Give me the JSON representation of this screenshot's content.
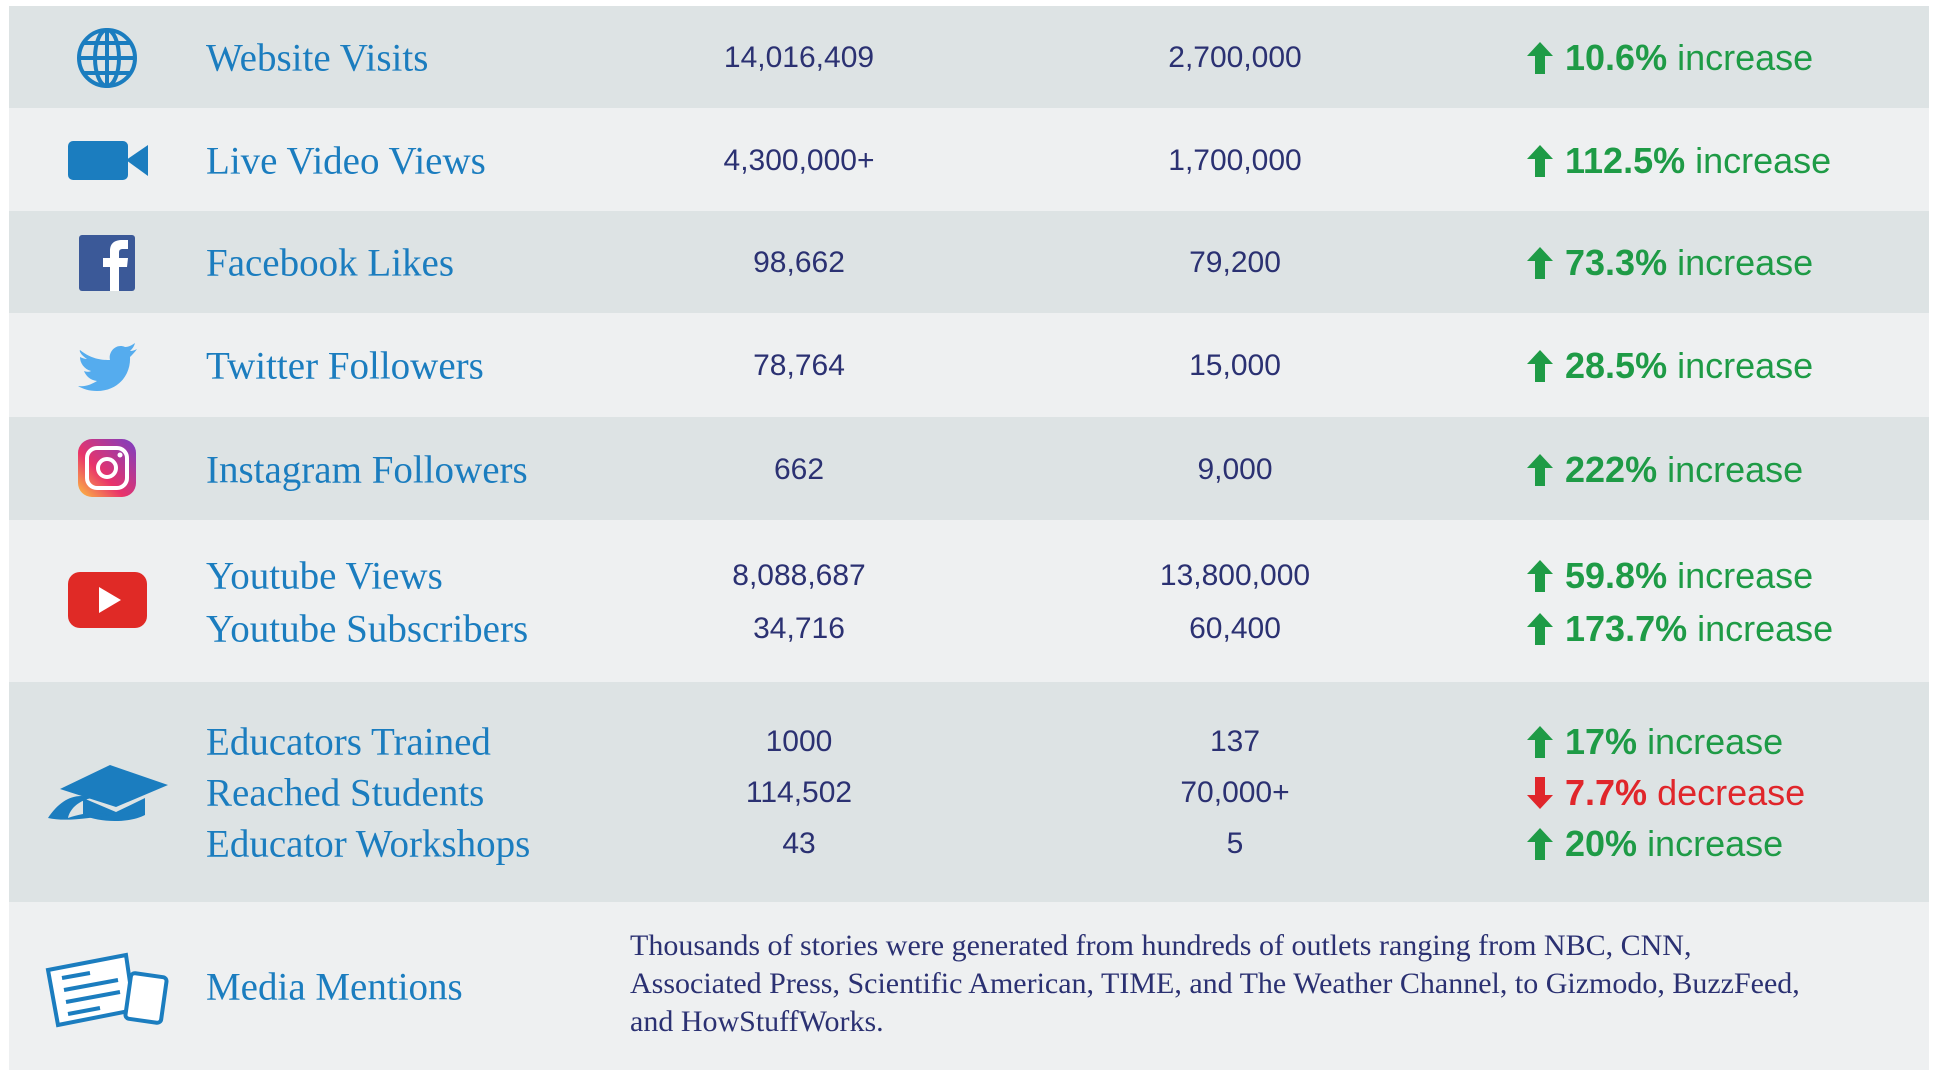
{
  "rows": [
    {
      "items": [
        {
          "label": "Website Visits",
          "value1": "14,016,409",
          "value2": "2,700,000",
          "percent": "10.6%",
          "word": "increase",
          "trend": "up"
        }
      ]
    },
    {
      "items": [
        {
          "label": "Live Video Views",
          "value1": "4,300,000+",
          "value2": "1,700,000",
          "percent": "112.5%",
          "word": "increase",
          "trend": "up"
        }
      ]
    },
    {
      "items": [
        {
          "label": "Facebook Likes",
          "value1": "98,662",
          "value2": "79,200",
          "percent": "73.3%",
          "word": "increase",
          "trend": "up"
        }
      ]
    },
    {
      "items": [
        {
          "label": "Twitter Followers",
          "value1": "78,764",
          "value2": "15,000",
          "percent": "28.5%",
          "word": "increase",
          "trend": "up"
        }
      ]
    },
    {
      "items": [
        {
          "label": "Instagram Followers",
          "value1": "662",
          "value2": "9,000",
          "percent": "222%",
          "word": "increase",
          "trend": "up"
        }
      ]
    },
    {
      "items": [
        {
          "label": "Youtube Views",
          "value1": "8,088,687",
          "value2": "13,800,000",
          "percent": "59.8%",
          "word": "increase",
          "trend": "up"
        },
        {
          "label": "Youtube Subscribers",
          "value1": "34,716",
          "value2": "60,400",
          "percent": "173.7%",
          "word": "increase",
          "trend": "up"
        }
      ]
    },
    {
      "items": [
        {
          "label": "Educators Trained",
          "value1": "1000",
          "value2": "137",
          "percent": "17%",
          "word": "increase",
          "trend": "up"
        },
        {
          "label": "Reached Students",
          "value1": "114,502",
          "value2": "70,000+",
          "percent": "7.7%",
          "word": "decrease",
          "trend": "down"
        },
        {
          "label": "Educator Workshops",
          "value1": "43",
          "value2": "5",
          "percent": "20%",
          "word": "increase",
          "trend": "up"
        }
      ]
    }
  ],
  "media": {
    "label": "Media Mentions",
    "text": "Thousands of stories were generated from hundreds of outlets ranging from NBC, CNN, Associated Press, Scientific American, TIME, and The Weather Channel, to Gizmodo, BuzzFeed, and HowStuffWorks."
  }
}
